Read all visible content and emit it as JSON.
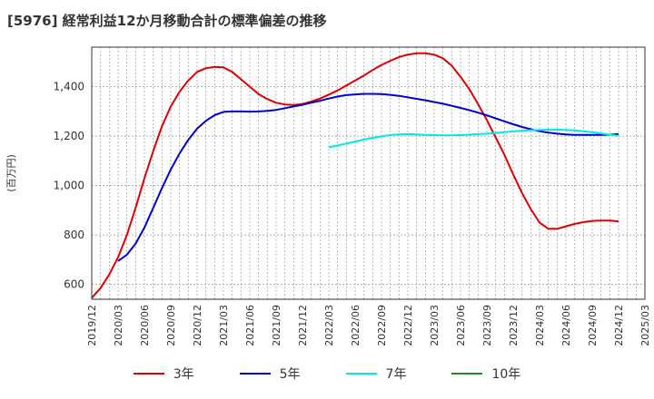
{
  "title": "[5976]  経常利益12か月移動合計の標準偏差の推移",
  "chart_data": {
    "type": "line",
    "ylabel": "(百万円)",
    "xlabel": "",
    "ylim": [
      540,
      1560
    ],
    "yticks": [
      600,
      800,
      1000,
      1200,
      1400
    ],
    "ytick_labels": [
      "600",
      "800",
      "1,000",
      "1,200",
      "1,400"
    ],
    "xticks": [
      "2019/12",
      "2020/03",
      "2020/06",
      "2020/09",
      "2020/12",
      "2021/03",
      "2021/06",
      "2021/09",
      "2021/12",
      "2022/03",
      "2022/06",
      "2022/09",
      "2022/12",
      "2023/03",
      "2023/06",
      "2023/09",
      "2023/12",
      "2024/03",
      "2024/06",
      "2024/09",
      "2024/12",
      "2025/03"
    ],
    "grid": true,
    "legend_position": "bottom",
    "series": [
      {
        "name": "3年",
        "color": "#e00000",
        "x": [
          "2019/12",
          "2020/01",
          "2020/02",
          "2020/03",
          "2020/04",
          "2020/05",
          "2020/06",
          "2020/07",
          "2020/08",
          "2020/09",
          "2020/10",
          "2020/11",
          "2020/12",
          "2021/01",
          "2021/02",
          "2021/03",
          "2021/04",
          "2021/05",
          "2021/06",
          "2021/07",
          "2021/08",
          "2021/09",
          "2021/10",
          "2021/11",
          "2021/12",
          "2022/01",
          "2022/02",
          "2022/03",
          "2022/04",
          "2022/05",
          "2022/06",
          "2022/07",
          "2022/08",
          "2022/09",
          "2022/10",
          "2022/11",
          "2022/12",
          "2023/01",
          "2023/02",
          "2023/03",
          "2023/04",
          "2023/05",
          "2023/06",
          "2023/07",
          "2023/08",
          "2023/09",
          "2023/10",
          "2023/11",
          "2023/12",
          "2024/01",
          "2024/02",
          "2024/03",
          "2024/04",
          "2024/05",
          "2024/06",
          "2024/07",
          "2024/08",
          "2024/09",
          "2024/10",
          "2024/11",
          "2024/12"
        ],
        "values": [
          545,
          585,
          640,
          710,
          800,
          910,
          1030,
          1140,
          1240,
          1320,
          1380,
          1425,
          1460,
          1475,
          1480,
          1478,
          1460,
          1430,
          1400,
          1370,
          1350,
          1335,
          1328,
          1326,
          1330,
          1340,
          1352,
          1368,
          1385,
          1405,
          1425,
          1445,
          1468,
          1488,
          1505,
          1520,
          1530,
          1535,
          1535,
          1530,
          1515,
          1485,
          1440,
          1390,
          1330,
          1265,
          1195,
          1125,
          1045,
          970,
          905,
          850,
          825,
          825,
          835,
          845,
          852,
          857,
          858,
          858,
          855
        ]
      },
      {
        "name": "5年",
        "color": "#0000cc",
        "x": [
          "2020/03",
          "2020/04",
          "2020/05",
          "2020/06",
          "2020/07",
          "2020/08",
          "2020/09",
          "2020/10",
          "2020/11",
          "2020/12",
          "2021/01",
          "2021/02",
          "2021/03",
          "2021/04",
          "2021/05",
          "2021/06",
          "2021/07",
          "2021/08",
          "2021/09",
          "2021/10",
          "2021/11",
          "2021/12",
          "2022/01",
          "2022/02",
          "2022/03",
          "2022/04",
          "2022/05",
          "2022/06",
          "2022/07",
          "2022/08",
          "2022/09",
          "2022/10",
          "2022/11",
          "2022/12",
          "2023/01",
          "2023/02",
          "2023/03",
          "2023/04",
          "2023/05",
          "2023/06",
          "2023/07",
          "2023/08",
          "2023/09",
          "2023/10",
          "2023/11",
          "2023/12",
          "2024/01",
          "2024/02",
          "2024/03",
          "2024/04",
          "2024/05",
          "2024/06",
          "2024/07",
          "2024/08",
          "2024/09",
          "2024/10",
          "2024/11",
          "2024/12"
        ],
        "values": [
          695,
          720,
          765,
          830,
          910,
          990,
          1065,
          1130,
          1185,
          1230,
          1262,
          1285,
          1298,
          1300,
          1300,
          1299,
          1300,
          1302,
          1306,
          1313,
          1320,
          1327,
          1335,
          1343,
          1352,
          1360,
          1366,
          1369,
          1371,
          1371,
          1370,
          1367,
          1363,
          1357,
          1351,
          1345,
          1338,
          1331,
          1323,
          1314,
          1305,
          1295,
          1284,
          1272,
          1260,
          1248,
          1237,
          1228,
          1220,
          1214,
          1210,
          1207,
          1205,
          1205,
          1205,
          1205,
          1206,
          1208
        ]
      },
      {
        "name": "7年",
        "color": "#00e8e8",
        "x": [
          "2022/03",
          "2022/04",
          "2022/05",
          "2022/06",
          "2022/07",
          "2022/08",
          "2022/09",
          "2022/10",
          "2022/11",
          "2022/12",
          "2023/01",
          "2023/02",
          "2023/03",
          "2023/04",
          "2023/05",
          "2023/06",
          "2023/07",
          "2023/08",
          "2023/09",
          "2023/10",
          "2023/11",
          "2023/12",
          "2024/01",
          "2024/02",
          "2024/03",
          "2024/04",
          "2024/05",
          "2024/06",
          "2024/07",
          "2024/08",
          "2024/09",
          "2024/10",
          "2024/11",
          "2024/12"
        ],
        "values": [
          1155,
          1162,
          1170,
          1178,
          1186,
          1193,
          1199,
          1204,
          1207,
          1208,
          1207,
          1205,
          1204,
          1203,
          1203,
          1204,
          1206,
          1208,
          1210,
          1213,
          1216,
          1219,
          1222,
          1224,
          1225,
          1226,
          1226,
          1225,
          1223,
          1220,
          1216,
          1211,
          1206,
          1202
        ]
      },
      {
        "name": "10年",
        "color": "#228822",
        "x": [],
        "values": []
      }
    ]
  }
}
